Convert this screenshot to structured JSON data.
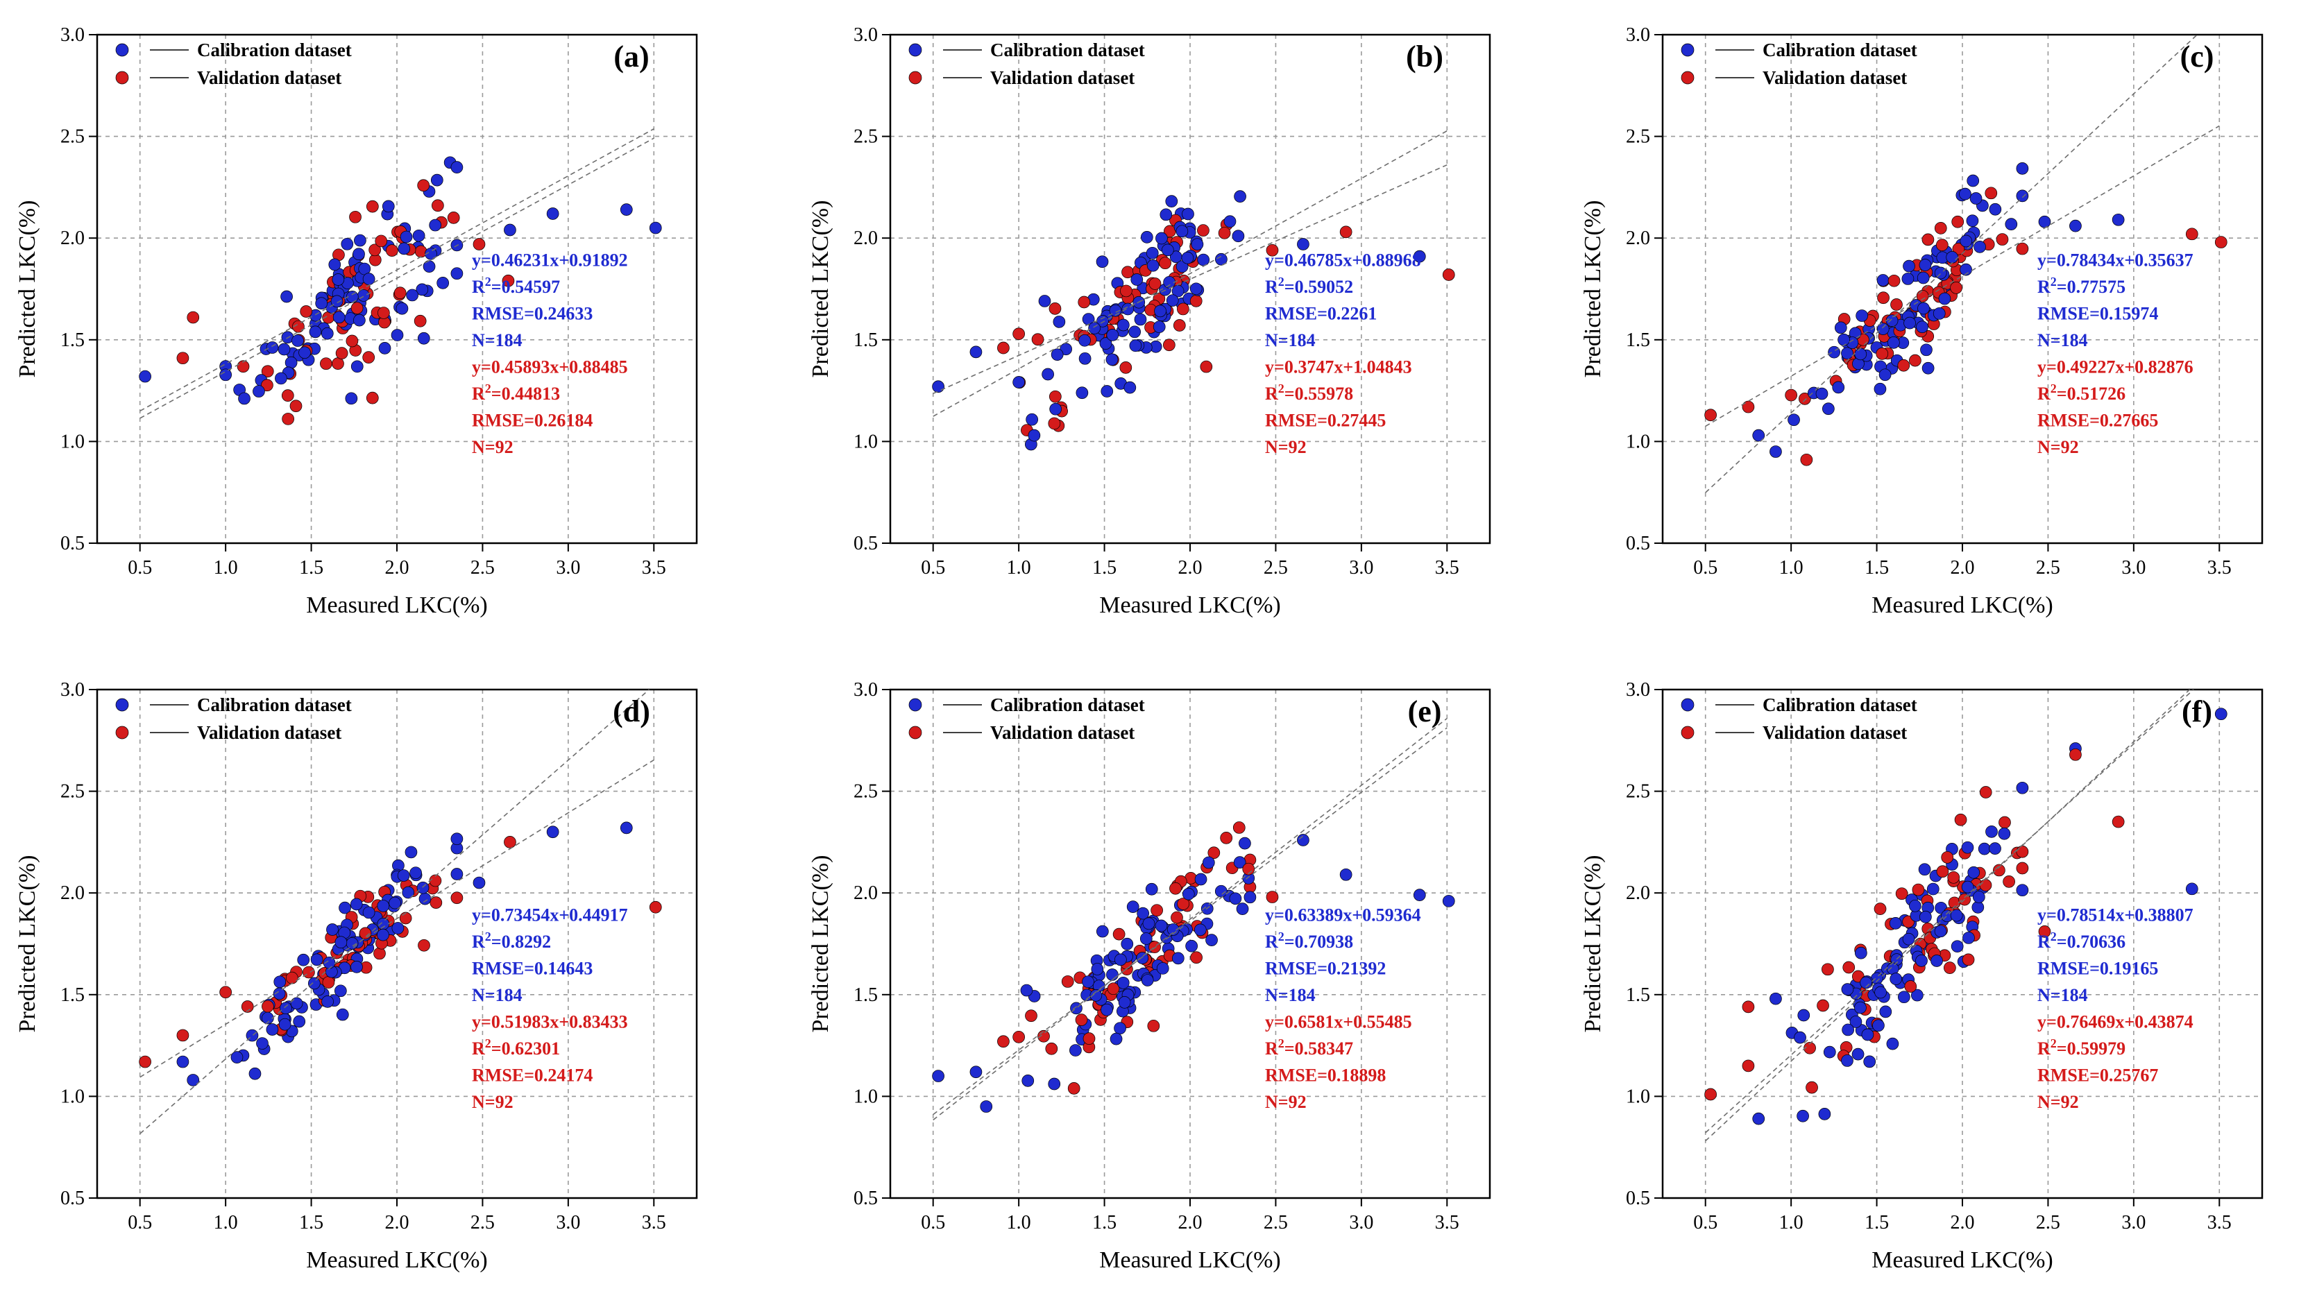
{
  "chart_data": [
    {
      "type": "scatter",
      "label": "(a)",
      "xlabel": "Measured LKC(%)",
      "ylabel": "Predicted LKC(%)",
      "xlim": [
        0.25,
        3.75
      ],
      "ylim": [
        0.5,
        3.0
      ],
      "xticks": [
        "0.5",
        "1.0",
        "1.5",
        "2.0",
        "2.5",
        "3.0",
        "3.5"
      ],
      "yticks": [
        "0.5",
        "1.0",
        "1.5",
        "2.0",
        "2.5",
        "3.0"
      ],
      "legend": [
        "Calibration dataset",
        "Validation dataset"
      ],
      "colors": {
        "calibration": "#1f2bd0",
        "validation": "#d41b1b"
      },
      "fit_cal": {
        "slope": 0.46231,
        "intercept": 0.91892
      },
      "fit_val": {
        "slope": 0.45893,
        "intercept": 0.88485
      },
      "stats_cal": [
        "y=0.46231x+0.91892",
        "R²=0.54597",
        "RMSE=0.24633",
        "N=184"
      ],
      "stats_val": [
        "y=0.45893x+0.88485",
        "R²=0.44813",
        "RMSE=0.26184",
        "N=92"
      ],
      "spread": 0.18,
      "outliers_cal": [
        [
          0.53,
          1.32
        ],
        [
          2.66,
          2.04
        ],
        [
          2.91,
          2.12
        ],
        [
          3.34,
          2.14
        ],
        [
          3.51,
          2.05
        ]
      ],
      "outliers_val": [
        [
          0.75,
          1.41
        ],
        [
          0.81,
          1.61
        ],
        [
          2.48,
          1.97
        ],
        [
          2.65,
          1.79
        ]
      ]
    },
    {
      "type": "scatter",
      "label": "(b)",
      "xlabel": "Measured LKC(%)",
      "ylabel": "Predicted LKC(%)",
      "xlim": [
        0.25,
        3.75
      ],
      "ylim": [
        0.5,
        3.0
      ],
      "xticks": [
        "0.5",
        "1.0",
        "1.5",
        "2.0",
        "2.5",
        "3.0",
        "3.5"
      ],
      "yticks": [
        "0.5",
        "1.0",
        "1.5",
        "2.0",
        "2.5",
        "3.0"
      ],
      "legend": [
        "Calibration dataset",
        "Validation dataset"
      ],
      "colors": {
        "calibration": "#1f2bd0",
        "validation": "#d41b1b"
      },
      "fit_cal": {
        "slope": 0.46785,
        "intercept": 0.88968
      },
      "fit_val": {
        "slope": 0.3747,
        "intercept": 1.04843
      },
      "stats_cal": [
        "y=0.46785x+0.88968",
        "R²=0.59052",
        "RMSE=0.2261",
        "N=184"
      ],
      "stats_val": [
        "y=0.3747x+1.04843",
        "R²=0.55978",
        "RMSE=0.27445",
        "N=92"
      ],
      "spread": 0.16,
      "outliers_cal": [
        [
          0.53,
          1.27
        ],
        [
          0.75,
          1.44
        ],
        [
          1.09,
          1.03
        ],
        [
          2.66,
          1.97
        ],
        [
          3.34,
          1.91
        ]
      ],
      "outliers_val": [
        [
          0.91,
          1.46
        ],
        [
          2.48,
          1.94
        ],
        [
          2.91,
          2.03
        ],
        [
          3.51,
          1.82
        ]
      ]
    },
    {
      "type": "scatter",
      "label": "(c)",
      "xlabel": "Measured LKC(%)",
      "ylabel": "Predicted LKC(%)",
      "xlim": [
        0.25,
        3.75
      ],
      "ylim": [
        0.5,
        3.0
      ],
      "xticks": [
        "0.5",
        "1.0",
        "1.5",
        "2.0",
        "2.5",
        "3.0",
        "3.5"
      ],
      "yticks": [
        "0.5",
        "1.0",
        "1.5",
        "2.0",
        "2.5",
        "3.0"
      ],
      "legend": [
        "Calibration dataset",
        "Validation dataset"
      ],
      "colors": {
        "calibration": "#1f2bd0",
        "validation": "#d41b1b"
      },
      "fit_cal": {
        "slope": 0.78434,
        "intercept": 0.35637
      },
      "fit_val": {
        "slope": 0.49227,
        "intercept": 0.82876
      },
      "stats_cal": [
        "y=0.78434x+0.35637",
        "R²=0.77575",
        "RMSE=0.15974",
        "N=184"
      ],
      "stats_val": [
        "y=0.49227x+0.82876",
        "R²=0.51726",
        "RMSE=0.27665",
        "N=92"
      ],
      "spread": 0.13,
      "outliers_cal": [
        [
          0.81,
          1.03
        ],
        [
          0.91,
          0.95
        ],
        [
          2.48,
          2.08
        ],
        [
          2.66,
          2.06
        ],
        [
          2.91,
          2.09
        ]
      ],
      "outliers_val": [
        [
          0.53,
          1.13
        ],
        [
          0.75,
          1.17
        ],
        [
          1.09,
          0.91
        ],
        [
          3.34,
          2.02
        ],
        [
          3.51,
          1.98
        ]
      ]
    },
    {
      "type": "scatter",
      "label": "(d)",
      "xlabel": "Measured LKC(%)",
      "ylabel": "Predicted LKC(%)",
      "xlim": [
        0.25,
        3.75
      ],
      "ylim": [
        0.5,
        3.0
      ],
      "xticks": [
        "0.5",
        "1.0",
        "1.5",
        "2.0",
        "2.5",
        "3.0",
        "3.5"
      ],
      "yticks": [
        "0.5",
        "1.0",
        "1.5",
        "2.0",
        "2.5",
        "3.0"
      ],
      "legend": [
        "Calibration dataset",
        "Validation dataset"
      ],
      "colors": {
        "calibration": "#1f2bd0",
        "validation": "#d41b1b"
      },
      "fit_cal": {
        "slope": 0.73454,
        "intercept": 0.44917
      },
      "fit_val": {
        "slope": 0.51983,
        "intercept": 0.83433
      },
      "stats_cal": [
        "y=0.73454x+0.44917",
        "R²=0.8292",
        "RMSE=0.14643",
        "N=184"
      ],
      "stats_val": [
        "y=0.51983x+0.83433",
        "R²=0.62301",
        "RMSE=0.24174",
        "N=92"
      ],
      "spread": 0.11,
      "outliers_cal": [
        [
          0.75,
          1.17
        ],
        [
          0.81,
          1.08
        ],
        [
          2.48,
          2.05
        ],
        [
          2.91,
          2.3
        ],
        [
          3.34,
          2.32
        ]
      ],
      "outliers_val": [
        [
          0.53,
          1.17
        ],
        [
          0.75,
          1.3
        ],
        [
          2.66,
          2.25
        ],
        [
          3.51,
          1.93
        ]
      ]
    },
    {
      "type": "scatter",
      "label": "(e)",
      "xlabel": "Measured LKC(%)",
      "ylabel": "Predicted LKC(%)",
      "xlim": [
        0.25,
        3.75
      ],
      "ylim": [
        0.5,
        3.0
      ],
      "xticks": [
        "0.5",
        "1.0",
        "1.5",
        "2.0",
        "2.5",
        "3.0",
        "3.5"
      ],
      "yticks": [
        "0.5",
        "1.0",
        "1.5",
        "2.0",
        "2.5",
        "3.0"
      ],
      "legend": [
        "Calibration dataset",
        "Validation dataset"
      ],
      "colors": {
        "calibration": "#1f2bd0",
        "validation": "#d41b1b"
      },
      "fit_cal": {
        "slope": 0.63389,
        "intercept": 0.59364
      },
      "fit_val": {
        "slope": 0.6581,
        "intercept": 0.55485
      },
      "stats_cal": [
        "y=0.63389x+0.59364",
        "R²=0.70938",
        "RMSE=0.21392",
        "N=184"
      ],
      "stats_val": [
        "y=0.6581x+0.55485",
        "R²=0.58347",
        "RMSE=0.18898",
        "N=92"
      ],
      "spread": 0.14,
      "outliers_cal": [
        [
          0.53,
          1.1
        ],
        [
          0.75,
          1.12
        ],
        [
          0.81,
          0.95
        ],
        [
          2.66,
          2.26
        ],
        [
          2.91,
          2.09
        ],
        [
          3.34,
          1.99
        ],
        [
          3.51,
          1.96
        ]
      ],
      "outliers_val": [
        [
          0.91,
          1.27
        ],
        [
          2.48,
          1.98
        ]
      ]
    },
    {
      "type": "scatter",
      "label": "(f)",
      "xlabel": "Measured LKC(%)",
      "ylabel": "Predicted LKC(%)",
      "xlim": [
        0.25,
        3.75
      ],
      "ylim": [
        0.5,
        3.0
      ],
      "xticks": [
        "0.5",
        "1.0",
        "1.5",
        "2.0",
        "2.5",
        "3.0",
        "3.5"
      ],
      "yticks": [
        "0.5",
        "1.0",
        "1.5",
        "2.0",
        "2.5",
        "3.0"
      ],
      "legend": [
        "Calibration dataset",
        "Validation dataset"
      ],
      "colors": {
        "calibration": "#1f2bd0",
        "validation": "#d41b1b"
      },
      "fit_cal": {
        "slope": 0.78514,
        "intercept": 0.38807
      },
      "fit_val": {
        "slope": 0.76469,
        "intercept": 0.43874
      },
      "stats_cal": [
        "y=0.78514x+0.38807",
        "R²=0.70636",
        "RMSE=0.19165",
        "N=184"
      ],
      "stats_val": [
        "y=0.76469x+0.43874",
        "R²=0.59979",
        "RMSE=0.25767",
        "N=92"
      ],
      "spread": 0.19,
      "outliers_cal": [
        [
          0.81,
          0.89
        ],
        [
          0.91,
          1.48
        ],
        [
          2.66,
          2.71
        ],
        [
          3.34,
          2.02
        ],
        [
          3.51,
          2.88
        ]
      ],
      "outliers_val": [
        [
          0.53,
          1.01
        ],
        [
          0.75,
          1.44
        ],
        [
          0.75,
          1.15
        ],
        [
          2.48,
          1.81
        ],
        [
          2.66,
          2.68
        ],
        [
          2.91,
          2.35
        ]
      ]
    }
  ]
}
